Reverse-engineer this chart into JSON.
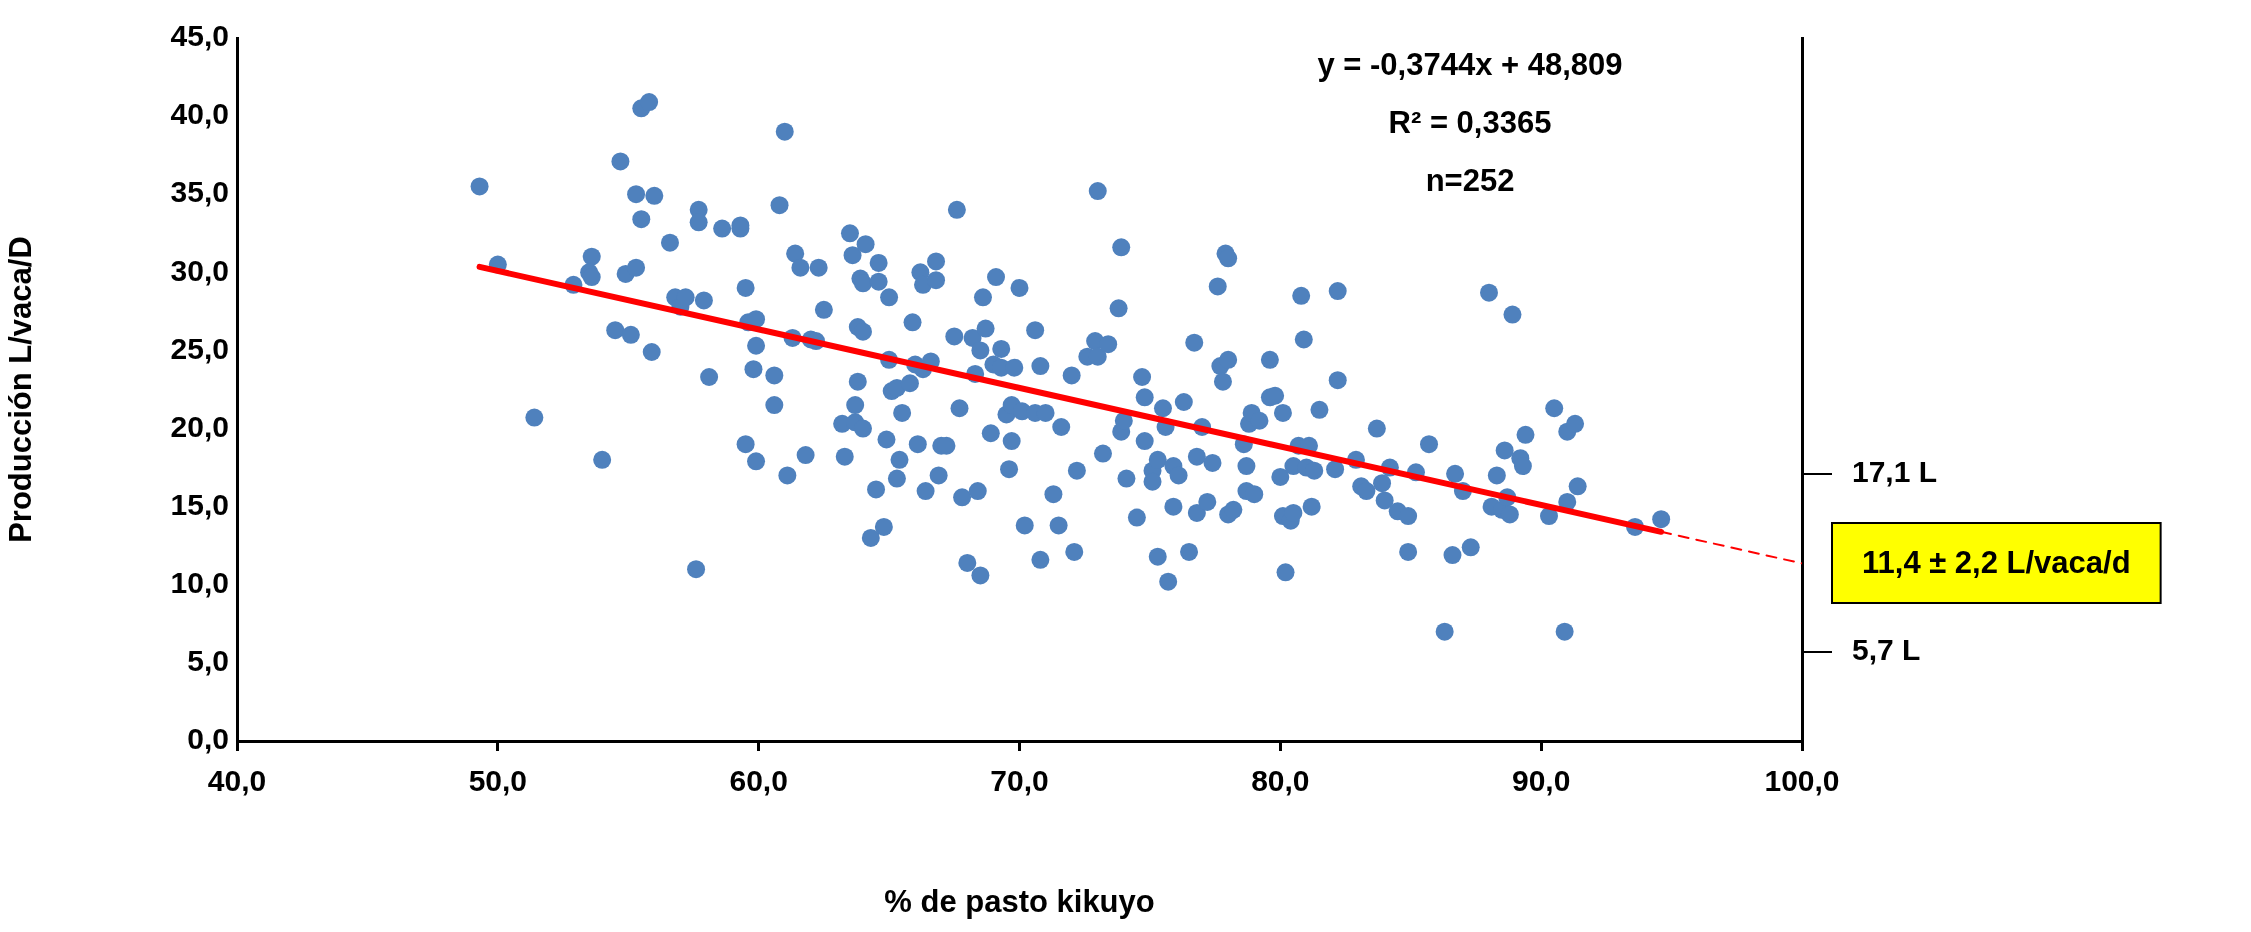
{
  "chart_data": {
    "type": "scatter",
    "xlabel": "% de pasto kikuyo",
    "ylabel": "Producción L/vaca/D",
    "xlim": [
      40,
      100
    ],
    "ylim": [
      0,
      45
    ],
    "y2lim": [
      0,
      45
    ],
    "xticks": [
      {
        "value": 40,
        "label": "40,0"
      },
      {
        "value": 50,
        "label": "50,0"
      },
      {
        "value": 60,
        "label": "60,0"
      },
      {
        "value": 70,
        "label": "70,0"
      },
      {
        "value": 80,
        "label": "80,0"
      },
      {
        "value": 90,
        "label": "90,0"
      },
      {
        "value": 100,
        "label": "100,0"
      }
    ],
    "yticks": [
      {
        "value": 0,
        "label": "0,0"
      },
      {
        "value": 5,
        "label": "5,0"
      },
      {
        "value": 10,
        "label": "10,0"
      },
      {
        "value": 15,
        "label": "15,0"
      },
      {
        "value": 20,
        "label": "20,0"
      },
      {
        "value": 25,
        "label": "25,0"
      },
      {
        "value": 30,
        "label": "30,0"
      },
      {
        "value": 35,
        "label": "35,0"
      },
      {
        "value": 40,
        "label": "40,0"
      },
      {
        "value": 45,
        "label": "45,0"
      }
    ],
    "y2ticks": [
      {
        "value": 5.7,
        "label": "5,7 L"
      },
      {
        "value": 17.1,
        "label": "17,1 L"
      }
    ],
    "grid": false,
    "legend": false,
    "annotations": [
      "y = -0,3744x + 48,809",
      "R² = 0,3365",
      "n=252",
      {
        "text": "11,4 ± 2,2 L/vaca/d",
        "x": 100,
        "y": 11.4
      }
    ],
    "series": [
      {
        "color": "#4f81bd",
        "marker": "circle",
        "x": [
          49.3,
          50.0,
          51.4,
          52.9,
          53.6,
          53.5,
          53.6,
          54.0,
          54.5,
          54.7,
          54.9,
          55.1,
          55.3,
          55.3,
          55.5,
          55.5,
          55.8,
          55.9,
          56.0,
          56.6,
          56.8,
          57.0,
          57.2,
          57.6,
          57.7,
          57.7,
          57.9,
          58.1,
          58.6,
          59.3,
          59.3,
          59.5,
          59.5,
          59.6,
          59.8,
          59.9,
          59.9,
          59.9,
          60.6,
          60.6,
          60.8,
          61.0,
          61.1,
          61.3,
          61.4,
          61.6,
          61.8,
          62.0,
          62.2,
          62.3,
          62.5,
          63.2,
          63.3,
          63.5,
          63.6,
          63.7,
          63.7,
          63.8,
          63.8,
          63.9,
          64.0,
          64.0,
          64.0,
          64.1,
          64.3,
          64.5,
          64.6,
          64.6,
          64.8,
          64.9,
          65.0,
          65.0,
          65.1,
          65.3,
          65.3,
          65.4,
          65.5,
          65.8,
          65.9,
          66.0,
          66.1,
          66.2,
          66.3,
          66.3,
          66.4,
          66.6,
          66.8,
          66.8,
          66.9,
          67.0,
          67.2,
          67.5,
          67.6,
          67.7,
          67.8,
          68.0,
          68.2,
          68.3,
          68.4,
          68.5,
          68.5,
          68.6,
          68.7,
          68.9,
          69.0,
          69.1,
          69.3,
          69.3,
          69.5,
          69.6,
          69.7,
          69.7,
          69.8,
          70.0,
          70.1,
          70.2,
          70.6,
          70.6,
          70.8,
          70.8,
          71.0,
          71.3,
          71.5,
          71.6,
          72.0,
          72.1,
          72.2,
          72.6,
          72.9,
          73.0,
          73.0,
          73.2,
          73.4,
          73.8,
          73.9,
          73.9,
          74.0,
          74.1,
          74.5,
          74.7,
          74.8,
          74.8,
          75.1,
          75.1,
          75.3,
          75.3,
          75.5,
          75.6,
          75.7,
          75.9,
          75.9,
          76.1,
          76.3,
          76.5,
          76.7,
          76.8,
          76.8,
          77.0,
          77.2,
          77.4,
          77.6,
          77.7,
          77.8,
          77.9,
          78.0,
          78.0,
          78.0,
          78.2,
          78.6,
          78.7,
          78.7,
          78.8,
          78.9,
          79.0,
          79.2,
          79.6,
          79.6,
          79.8,
          80.0,
          80.1,
          80.1,
          80.2,
          80.4,
          80.5,
          80.5,
          80.7,
          80.8,
          80.9,
          81.0,
          81.1,
          81.2,
          81.3,
          81.5,
          82.1,
          82.2,
          82.2,
          82.9,
          83.1,
          83.3,
          83.7,
          83.9,
          84.0,
          84.2,
          84.5,
          84.9,
          84.9,
          85.2,
          85.7,
          86.3,
          86.6,
          86.7,
          87.0,
          87.3,
          88.0,
          88.1,
          88.3,
          88.5,
          88.6,
          88.7,
          88.8,
          88.9,
          89.2,
          89.3,
          89.4,
          90.3,
          90.5,
          90.9,
          91.0,
          91.0,
          91.3,
          91.4,
          93.6,
          94.6
        ],
        "values": [
          35.5,
          30.5,
          20.7,
          29.2,
          31.0,
          30.0,
          29.7,
          18.0,
          26.3,
          37.1,
          29.9,
          26.0,
          30.3,
          35.0,
          40.5,
          33.4,
          40.9,
          24.9,
          34.9,
          31.9,
          28.4,
          27.8,
          28.4,
          11.0,
          34.0,
          33.2,
          28.2,
          23.3,
          32.8,
          33.0,
          32.8,
          19.0,
          29.0,
          26.8,
          23.8,
          27.0,
          25.3,
          17.9,
          23.4,
          21.5,
          34.3,
          39.0,
          17.0,
          25.8,
          31.2,
          30.3,
          18.3,
          25.7,
          25.6,
          30.3,
          27.6,
          20.3,
          18.2,
          32.5,
          31.1,
          21.5,
          20.4,
          26.5,
          23.0,
          29.6,
          29.3,
          26.2,
          20.0,
          31.8,
          13.0,
          16.1,
          30.6,
          29.4,
          13.7,
          19.3,
          28.4,
          24.4,
          22.4,
          22.6,
          16.8,
          18.0,
          21.0,
          22.9,
          26.8,
          24.1,
          19.0,
          30.0,
          29.2,
          23.8,
          16.0,
          24.3,
          30.7,
          29.5,
          17.0,
          18.9,
          18.9,
          25.9,
          34.0,
          21.3,
          15.6,
          11.4,
          25.8,
          23.5,
          16.0,
          25.0,
          10.6,
          28.4,
          26.4,
          19.7,
          24.1,
          29.7,
          25.1,
          23.9,
          20.9,
          17.4,
          21.5,
          19.2,
          23.9,
          29.0,
          21.1,
          13.8,
          26.3,
          21.0,
          24.0,
          11.6,
          21.0,
          15.8,
          13.8,
          20.1,
          23.4,
          12.1,
          17.3,
          24.6,
          25.6,
          35.2,
          24.6,
          18.4,
          25.4,
          27.7,
          31.6,
          19.8,
          20.5,
          16.8,
          14.3,
          23.3,
          22.0,
          19.2,
          17.3,
          16.6,
          18.0,
          11.8,
          21.3,
          20.1,
          10.2,
          15.0,
          17.6,
          17.0,
          21.7,
          12.1,
          25.5,
          18.2,
          14.6,
          20.1,
          15.3,
          17.8,
          29.1,
          24.0,
          23.0,
          31.2,
          30.9,
          24.4,
          14.5,
          14.8,
          19.0,
          17.6,
          16.0,
          20.3,
          21.0,
          15.8,
          20.5,
          24.4,
          22.0,
          22.1,
          16.9,
          14.4,
          21.0,
          10.8,
          14.1,
          14.6,
          17.6,
          18.9,
          28.5,
          25.7,
          17.5,
          18.9,
          15.0,
          17.3,
          21.2,
          17.4,
          23.1,
          28.8,
          18.0,
          16.3,
          16.0,
          20.0,
          16.5,
          15.4,
          17.5,
          14.7,
          12.1,
          14.4,
          17.2,
          19.0,
          7.0,
          11.9,
          17.1,
          16.0,
          12.4,
          28.7,
          15.0,
          17.0,
          14.8,
          18.6,
          15.6,
          14.5,
          27.3,
          18.1,
          17.6,
          19.6,
          14.4,
          21.3,
          7.0,
          15.3,
          19.8,
          20.3,
          16.3,
          13.7,
          14.2
        ]
      },
      {
        "type": "line",
        "color": "#ff0000",
        "marker": "none",
        "line_style": "solid",
        "x": [
          49.3,
          94.6
        ],
        "values": [
          30.35,
          13.39
        ]
      },
      {
        "type": "line",
        "color": "#ff0000",
        "marker": "none",
        "line_style": "dashed",
        "x": [
          94.6,
          100
        ],
        "values": [
          13.39,
          11.37
        ]
      }
    ]
  }
}
